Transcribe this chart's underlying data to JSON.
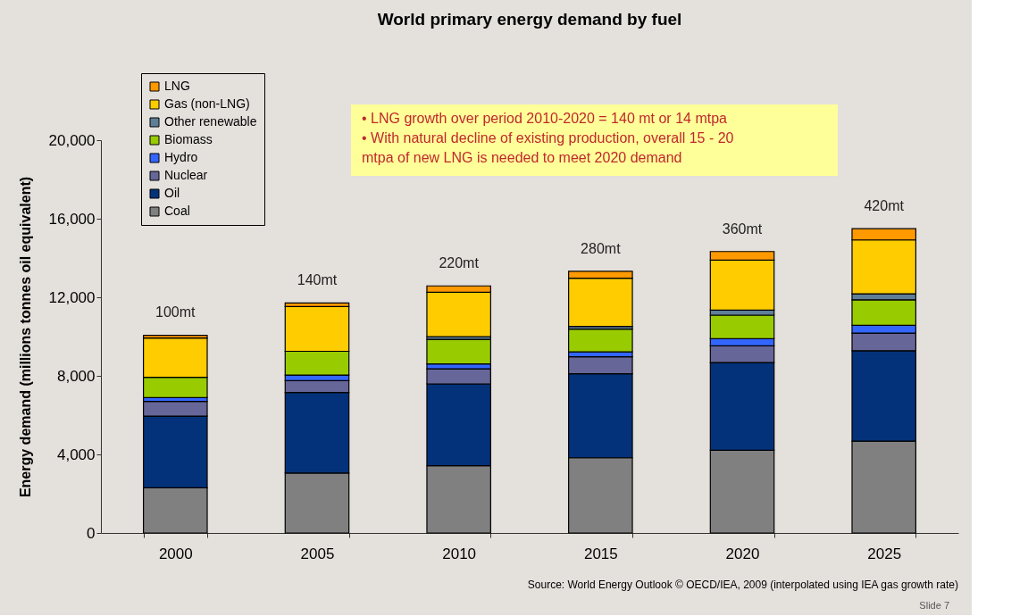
{
  "chart_data": {
    "type": "bar",
    "title": "World primary energy demand by fuel",
    "ylabel": "Energy demand (millions tonnes oil equivalent)",
    "categories": [
      "2000",
      "2005",
      "2010",
      "2015",
      "2020",
      "2025"
    ],
    "stacked": true,
    "series": [
      {
        "name": "Coal",
        "color": "#808080",
        "values": [
          2300,
          3050,
          3430,
          3830,
          4210,
          4680
        ]
      },
      {
        "name": "Oil",
        "color": "#04327a",
        "values": [
          3650,
          4100,
          4160,
          4280,
          4470,
          4600
        ]
      },
      {
        "name": "Nuclear",
        "color": "#666699",
        "values": [
          750,
          610,
          770,
          860,
          850,
          900
        ]
      },
      {
        "name": "Hydro",
        "color": "#3366ff",
        "values": [
          190,
          280,
          250,
          250,
          360,
          390
        ]
      },
      {
        "name": "Biomass",
        "color": "#99cc00",
        "values": [
          1040,
          1210,
          1250,
          1160,
          1200,
          1300
        ]
      },
      {
        "name": "Other renewable",
        "color": "#5f7f99",
        "values": [
          null,
          null,
          140,
          140,
          260,
          310
        ]
      },
      {
        "name": "Gas (non-LNG)",
        "color": "#ffcc00",
        "values": [
          2000,
          2280,
          2260,
          2450,
          2540,
          2740
        ]
      },
      {
        "name": "LNG",
        "color": "#ff9900",
        "values": [
          130,
          180,
          320,
          350,
          440,
          570
        ]
      }
    ],
    "ylim": [
      0,
      20000
    ],
    "yticks": [
      0,
      {
        "value": 4000,
        "label": "4,000"
      },
      {
        "value": 8000,
        "label": "8,000"
      },
      {
        "value": 12000,
        "label": "12,000"
      },
      {
        "value": 16000,
        "label": "16,000"
      },
      {
        "value": 20000,
        "label": "20,000"
      }
    ],
    "grid": false,
    "legend": "top left",
    "annotations": [
      "• LNG growth over period 2010-2020 = 140 mt or 14 mtpa",
      "• With natural decline of existing production, overall 15 - 20 mtpa of new LNG is needed to meet 2020 demand",
      "Source: World Energy Outlook © OECD/IEA, 2009 (interpolated using IEA gas growth rate)",
      "Slide 7",
      {
        "text": "100mt",
        "x": "2000",
        "y": 10090
      },
      {
        "text": "140mt",
        "x": "2005",
        "y": 11740
      },
      {
        "text": "220mt",
        "x": "2010",
        "y": 12580
      },
      {
        "text": "280mt",
        "x": "2015",
        "y": 13320
      },
      {
        "text": "360mt",
        "x": "2020",
        "y": 14330
      },
      {
        "text": "420mt",
        "x": "2025",
        "y": 15490
      }
    ]
  }
}
